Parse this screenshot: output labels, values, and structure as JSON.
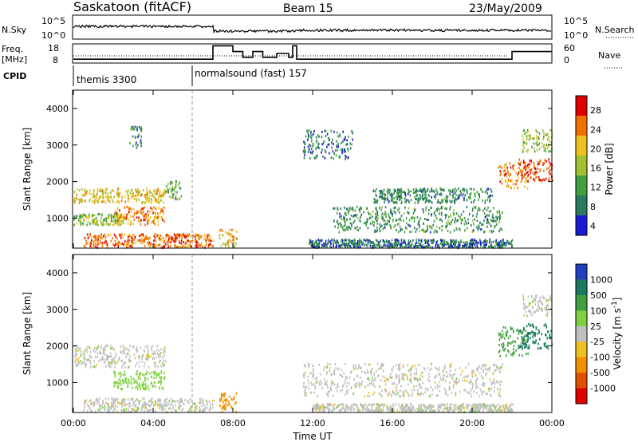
{
  "header": {
    "station": "Saskatoon (fitACF)",
    "beam": "Beam 15",
    "date": "23/May/2009"
  },
  "noise_panel": {
    "left_label": "N.Sky",
    "left_ticks": [
      "10^5",
      "10^0"
    ],
    "right_ticks": [
      "10^5",
      "10^0"
    ],
    "right_label": "N.Search"
  },
  "freq_panel": {
    "left_label_line1": "Freq.",
    "left_label_line2": "[MHz]",
    "left_ticks": [
      "18",
      "8"
    ],
    "right_ticks": [
      "60",
      "0"
    ],
    "right_label": "Nave"
  },
  "cpid": {
    "label": "CPID",
    "programs": [
      {
        "name": "themis 3300",
        "start_hour": 0.0
      },
      {
        "name": "normalsound (fast) 157",
        "start_hour": 6.0
      }
    ]
  },
  "colors": {
    "scale_high": "#e00000",
    "scale_mid": "#f0c020",
    "scale_green": "#40a040",
    "scale_low": "#1a1ad0",
    "velocity_grey": "#c0c0c0"
  },
  "chart_data": [
    {
      "type": "heatmap",
      "name": "power",
      "xlabel": "",
      "ylabel": "Slant Range [km]",
      "x_ticks": [
        "00:00",
        "04:00",
        "08:00",
        "12:00",
        "16:00",
        "20:00",
        "00:00"
      ],
      "y_ticks": [
        "1000",
        "2000",
        "3000",
        "4000"
      ],
      "xlim": [
        0,
        24
      ],
      "ylim": [
        180,
        4500
      ],
      "colorbar_label": "Power [dB]",
      "colorbar_ticks": [
        "28",
        "24",
        "20",
        "16",
        "12",
        "8",
        "4"
      ],
      "colorbar_range": [
        0,
        30
      ],
      "colorbar_colors": [
        "#e00000",
        "#f07000",
        "#f0c020",
        "#a0c030",
        "#40a040",
        "#2a7a60",
        "#1a1ad0"
      ],
      "echo_regions": [
        {
          "t0": 0.0,
          "t1": 4.6,
          "r0": 1400,
          "r1": 1800,
          "level": 18
        },
        {
          "t0": 2.0,
          "t1": 4.6,
          "r0": 800,
          "r1": 1300,
          "level": 22
        },
        {
          "t0": 0.0,
          "t1": 2.5,
          "r0": 800,
          "r1": 1100,
          "level": 14
        },
        {
          "t0": 0.5,
          "t1": 7.0,
          "r0": 180,
          "r1": 550,
          "level": 24
        },
        {
          "t0": 2.8,
          "t1": 3.4,
          "r0": 2900,
          "r1": 3500,
          "level": 8
        },
        {
          "t0": 4.6,
          "t1": 5.4,
          "r0": 1500,
          "r1": 2000,
          "level": 12
        },
        {
          "t0": 7.3,
          "t1": 8.2,
          "r0": 180,
          "r1": 700,
          "level": 18
        },
        {
          "t0": 11.8,
          "t1": 22.0,
          "r0": 180,
          "r1": 400,
          "level": 6
        },
        {
          "t0": 11.5,
          "t1": 14.0,
          "r0": 2600,
          "r1": 3400,
          "level": 6
        },
        {
          "t0": 13.0,
          "t1": 21.5,
          "r0": 600,
          "r1": 1300,
          "level": 9
        },
        {
          "t0": 15.0,
          "t1": 21.0,
          "r0": 1400,
          "r1": 1800,
          "level": 8
        },
        {
          "t0": 21.3,
          "t1": 22.8,
          "r0": 1800,
          "r1": 2500,
          "level": 22
        },
        {
          "t0": 22.3,
          "t1": 24.0,
          "r0": 2000,
          "r1": 2600,
          "level": 26
        },
        {
          "t0": 22.5,
          "t1": 24.0,
          "r0": 2800,
          "r1": 3400,
          "level": 14
        }
      ]
    },
    {
      "type": "heatmap",
      "name": "velocity",
      "xlabel": "Time UT",
      "ylabel": "Slant Range [km]",
      "x_ticks": [
        "00:00",
        "04:00",
        "08:00",
        "12:00",
        "16:00",
        "20:00",
        "00:00"
      ],
      "y_ticks": [
        "1000",
        "2000",
        "3000",
        "4000"
      ],
      "xlim": [
        0,
        24
      ],
      "ylim": [
        180,
        4500
      ],
      "colorbar_label": "Velocity [m s-1]",
      "colorbar_ticks": [
        "1000",
        "500",
        "100",
        "25",
        "-25",
        "-100",
        "-500",
        "-1000"
      ],
      "colorbar_colors": [
        "#2040c0",
        "#1a7a60",
        "#40a040",
        "#80d040",
        "#c0c0c0",
        "#f0c020",
        "#f09000",
        "#e05000",
        "#e00000"
      ],
      "echo_regions": [
        {
          "t0": 0.0,
          "t1": 4.6,
          "r0": 1400,
          "r1": 2000,
          "velocity": 0
        },
        {
          "t0": 2.0,
          "t1": 4.6,
          "r0": 800,
          "r1": 1300,
          "velocity": 60
        },
        {
          "t0": 0.5,
          "t1": 7.0,
          "r0": 180,
          "r1": 550,
          "velocity": 0
        },
        {
          "t0": 7.3,
          "t1": 8.2,
          "r0": 180,
          "r1": 700,
          "velocity": -300
        },
        {
          "t0": 11.5,
          "t1": 21.5,
          "r0": 600,
          "r1": 1500,
          "velocity": 0
        },
        {
          "t0": 12.0,
          "t1": 22.0,
          "r0": 180,
          "r1": 400,
          "velocity": 0
        },
        {
          "t0": 21.3,
          "t1": 22.8,
          "r0": 1700,
          "r1": 2500,
          "velocity": 200
        },
        {
          "t0": 22.3,
          "t1": 24.0,
          "r0": 1900,
          "r1": 2600,
          "velocity": 800
        },
        {
          "t0": 22.5,
          "t1": 24.0,
          "r0": 2800,
          "r1": 3400,
          "velocity": 0
        }
      ]
    }
  ],
  "frequency_trace": [
    {
      "t": 0.0,
      "mhz": 10
    },
    {
      "t": 6.0,
      "mhz": 10
    },
    {
      "t": 7.0,
      "mhz": 17
    },
    {
      "t": 7.6,
      "mhz": 17
    },
    {
      "t": 8.0,
      "mhz": 14
    },
    {
      "t": 8.5,
      "mhz": 11
    },
    {
      "t": 9.0,
      "mhz": 14
    },
    {
      "t": 9.5,
      "mhz": 11
    },
    {
      "t": 10.2,
      "mhz": 13
    },
    {
      "t": 10.8,
      "mhz": 11
    },
    {
      "t": 11.0,
      "mhz": 17
    },
    {
      "t": 11.2,
      "mhz": 10
    },
    {
      "t": 21.8,
      "mhz": 10
    },
    {
      "t": 22.0,
      "mhz": 14
    },
    {
      "t": 24.0,
      "mhz": 14
    }
  ]
}
